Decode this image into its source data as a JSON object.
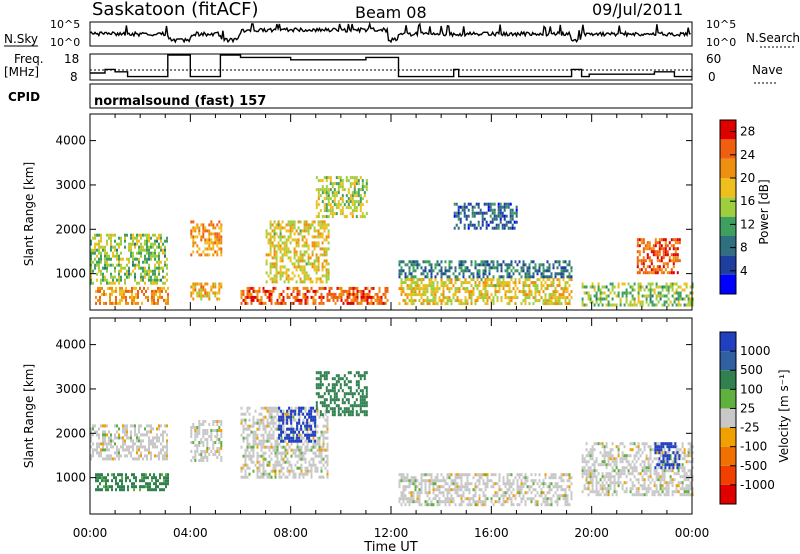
{
  "header": {
    "station": "Saskatoon (fitACF)",
    "beam": "Beam 08",
    "date": "09/Jul/2011"
  },
  "panels": {
    "nsky_label": "N.Sky",
    "nsky_ticks": [
      "10^5",
      "10^0"
    ],
    "nsearch_label": "N.Search",
    "nsearch_ticks": [
      "10^5",
      "10^0"
    ],
    "freq_label_line1": "Freq.",
    "freq_label_line2": "[MHz]",
    "freq_ticks": [
      "18",
      "8"
    ],
    "nave_label": "Nave",
    "nave_ticks": [
      "60",
      "0"
    ],
    "cpid_label": "CPID",
    "cpid_text": "normalsound (fast) 157"
  },
  "colors": {
    "power_scale": [
      "#0000ff",
      "#1f3f9f",
      "#2f6f7f",
      "#3f9f5f",
      "#9fcf3f",
      "#efbf1f",
      "#ef8f0f",
      "#ef5f0f",
      "#df0000"
    ],
    "velocity_scale": [
      "#2040c0",
      "#3060a0",
      "#308050",
      "#60b040",
      "#c8c8c8",
      "#f0a000",
      "#f07000",
      "#f04000",
      "#e00000"
    ]
  },
  "chart_data": [
    {
      "type": "heatmap",
      "name": "power",
      "ylabel": "Slant Range [km]",
      "xlabel": "Time UT",
      "x_ticks": [
        "00:00",
        "04:00",
        "08:00",
        "12:00",
        "16:00",
        "20:00",
        "00:00"
      ],
      "y_ticks": [
        "1000",
        "2000",
        "3000",
        "4000"
      ],
      "xlim_hours": [
        0,
        24
      ],
      "ylim_km": [
        180,
        4600
      ],
      "colorbar_label": "Power [dB]",
      "colorbar_ticks": [
        "4",
        "8",
        "12",
        "16",
        "20",
        "24",
        "28"
      ],
      "colorbar_range": [
        0,
        30
      ],
      "data_gaps_hours": [
        [
          3.1,
          4.0
        ],
        [
          5.2,
          5.9
        ],
        [
          11.9,
          12.3
        ],
        [
          19.2,
          19.6
        ]
      ],
      "features": [
        {
          "t0": 0.2,
          "t1": 3.1,
          "r0": 300,
          "r1": 700,
          "value": 22
        },
        {
          "t0": 0.0,
          "t1": 3.1,
          "r0": 800,
          "r1": 1900,
          "value": 14
        },
        {
          "t0": 4.0,
          "t1": 5.2,
          "r0": 1400,
          "r1": 2200,
          "value": 22
        },
        {
          "t0": 4.0,
          "t1": 5.2,
          "r0": 400,
          "r1": 800,
          "value": 20
        },
        {
          "t0": 6.0,
          "t1": 11.9,
          "r0": 300,
          "r1": 700,
          "value": 26
        },
        {
          "t0": 7.0,
          "t1": 9.5,
          "r0": 800,
          "r1": 2200,
          "value": 18
        },
        {
          "t0": 9.0,
          "t1": 11.0,
          "r0": 2300,
          "r1": 3200,
          "value": 16
        },
        {
          "t0": 12.3,
          "t1": 19.2,
          "r0": 300,
          "r1": 900,
          "value": 18
        },
        {
          "t0": 12.3,
          "t1": 19.2,
          "r0": 900,
          "r1": 1300,
          "value": 8
        },
        {
          "t0": 14.5,
          "t1": 17.0,
          "r0": 2000,
          "r1": 2600,
          "value": 6
        },
        {
          "t0": 19.6,
          "t1": 24.0,
          "r0": 300,
          "r1": 800,
          "value": 14
        },
        {
          "t0": 21.8,
          "t1": 23.5,
          "r0": 1000,
          "r1": 1800,
          "value": 26
        }
      ]
    },
    {
      "type": "heatmap",
      "name": "velocity",
      "ylabel": "Slant Range [km]",
      "xlabel": "Time UT",
      "x_ticks": [
        "00:00",
        "04:00",
        "08:00",
        "12:00",
        "16:00",
        "20:00",
        "00:00"
      ],
      "y_ticks": [
        "1000",
        "2000",
        "3000",
        "4000"
      ],
      "xlim_hours": [
        0,
        24
      ],
      "ylim_km": [
        180,
        4600
      ],
      "colorbar_label": "Velocity [m s⁻¹]",
      "colorbar_ticks": [
        "1000",
        "500",
        "100",
        "25",
        "-25",
        "-100",
        "-500",
        "-1000"
      ],
      "features": [
        {
          "t0": 0.0,
          "t1": 3.1,
          "r0": 1400,
          "r1": 2200,
          "value": 0
        },
        {
          "t0": 0.2,
          "t1": 3.1,
          "r0": 700,
          "r1": 1100,
          "value": 80
        },
        {
          "t0": 4.0,
          "t1": 5.2,
          "r0": 1400,
          "r1": 2300,
          "value": 0
        },
        {
          "t0": 6.0,
          "t1": 9.5,
          "r0": 1000,
          "r1": 2600,
          "value": 0
        },
        {
          "t0": 7.5,
          "t1": 9.0,
          "r0": 1800,
          "r1": 2600,
          "value": 800
        },
        {
          "t0": 9.0,
          "t1": 11.0,
          "r0": 2400,
          "r1": 3400,
          "value": 150
        },
        {
          "t0": 12.3,
          "t1": 19.2,
          "r0": 400,
          "r1": 1100,
          "value": 0
        },
        {
          "t0": 19.6,
          "t1": 24.0,
          "r0": 600,
          "r1": 1800,
          "value": 0
        },
        {
          "t0": 22.5,
          "t1": 23.5,
          "r0": 1200,
          "r1": 1800,
          "value": 800
        }
      ]
    },
    {
      "type": "line",
      "name": "frequency_and_nave",
      "ylabel": "Freq. [MHz]",
      "ylim": [
        8,
        18
      ],
      "freq_x_hours": [
        0,
        0.6,
        0.6,
        1.0,
        1.0,
        1.5,
        1.5,
        3.1,
        3.1,
        4.0,
        4.0,
        5.2,
        5.2,
        6.0,
        6.0,
        8.0,
        8.0,
        11.0,
        11.0,
        12.3,
        12.3,
        14.5,
        14.5,
        14.7,
        14.7,
        19.2,
        19.2,
        19.6,
        19.6,
        19.9,
        19.9,
        22.5,
        22.5,
        23.3,
        23.3,
        24.0
      ],
      "freq_y": [
        10.5,
        10.5,
        12,
        12,
        11,
        11,
        9,
        9,
        18,
        18,
        9,
        9,
        18,
        18,
        17,
        17,
        16,
        16,
        17,
        17,
        9,
        9,
        12,
        12,
        9,
        9,
        12,
        12,
        9,
        9,
        10,
        10,
        11,
        11,
        9,
        9
      ]
    }
  ]
}
